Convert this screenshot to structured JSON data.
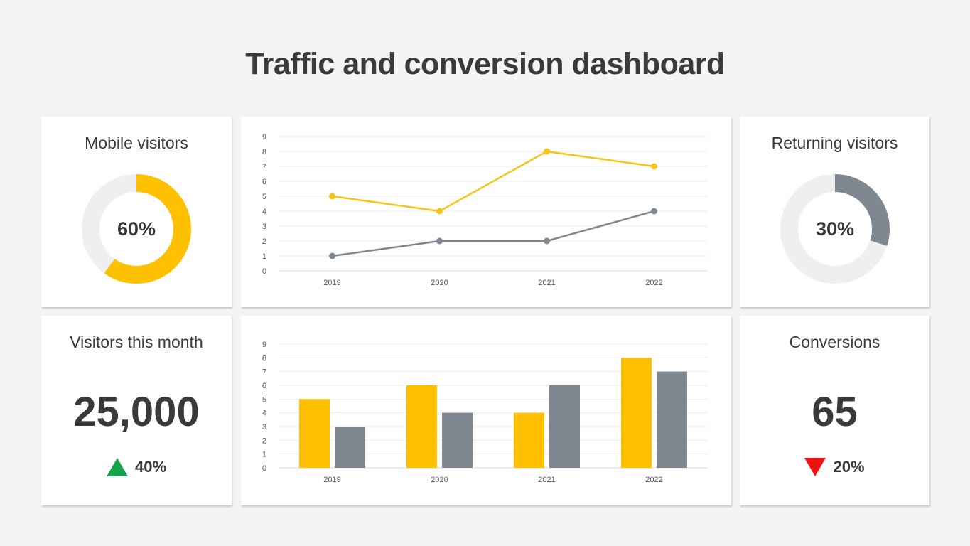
{
  "title": "Traffic and conversion dashboard",
  "colors": {
    "yellow": "#ffc000",
    "gray": "#7f8791",
    "track": "#efefef",
    "up": "#16a34a",
    "down": "#ef1111"
  },
  "mobile": {
    "title": "Mobile visitors",
    "value_label": "60%",
    "fraction": 0.6
  },
  "returning": {
    "title": "Returning visitors",
    "value_label": "30%",
    "fraction": 0.3
  },
  "visitors": {
    "title": "Visitors this month",
    "value": "25,000",
    "delta": "40%",
    "direction": "up"
  },
  "conversions": {
    "title": "Conversions",
    "value": "65",
    "delta": "20%",
    "direction": "down"
  },
  "chart_data": [
    {
      "type": "line",
      "categories": [
        "2019",
        "2020",
        "2021",
        "2022"
      ],
      "series": [
        {
          "values": [
            5,
            4,
            8,
            7
          ],
          "color": "#f5c518"
        },
        {
          "values": [
            1,
            2,
            2,
            4
          ],
          "color": "#7f8791"
        }
      ],
      "ylim": [
        0,
        9
      ],
      "yticks": [
        0,
        1,
        2,
        3,
        4,
        5,
        6,
        7,
        8,
        9
      ],
      "grid": true
    },
    {
      "type": "bar",
      "categories": [
        "2019",
        "2020",
        "2021",
        "2022"
      ],
      "series": [
        {
          "values": [
            5,
            6,
            4,
            8
          ],
          "color": "#ffc000"
        },
        {
          "values": [
            3,
            4,
            6,
            7
          ],
          "color": "#7f8791"
        }
      ],
      "ylim": [
        0,
        9
      ],
      "yticks": [
        0,
        1,
        2,
        3,
        4,
        5,
        6,
        7,
        8,
        9
      ],
      "grid": true
    }
  ]
}
